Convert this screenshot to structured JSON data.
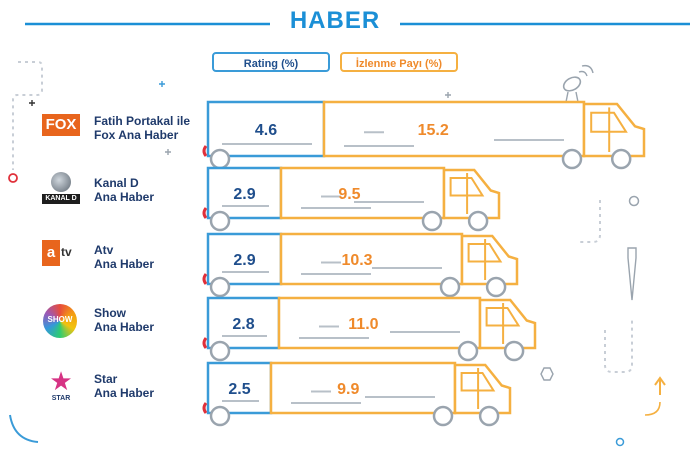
{
  "title": "HABER",
  "legend": {
    "rating_label": "Rating (%)",
    "izlenme_label": "İzlenme Payı (%)"
  },
  "colors": {
    "rating": "#3a9bd8",
    "rating_value": "#1f4e8c",
    "izlenme": "#f5b041",
    "izlenme_value": "#ef8a2b",
    "title": "#1b8fd6",
    "label": "#1f3a6b"
  },
  "logos": {
    "fox": "FOX",
    "kanald": "KANAL D",
    "atv": "atv",
    "show": "SHOW",
    "star": "STAR"
  },
  "chart_data": {
    "type": "bar",
    "title": "HABER",
    "categories": [
      "Fatih Portakal ile Fox Ana Haber",
      "Kanal D Ana Haber",
      "Atv Ana Haber",
      "Show Ana Haber",
      "Star Ana Haber"
    ],
    "category_lines": [
      [
        "Fatih Portakal ile",
        "Fox Ana Haber"
      ],
      [
        "Kanal D",
        "Ana Haber"
      ],
      [
        "Atv",
        "Ana Haber"
      ],
      [
        "Show",
        "Ana Haber"
      ],
      [
        "Star",
        "Ana Haber"
      ]
    ],
    "series": [
      {
        "name": "Rating (%)",
        "values": [
          4.6,
          2.9,
          2.9,
          2.8,
          2.5
        ]
      },
      {
        "name": "İzlenme Payı (%)",
        "values": [
          15.2,
          9.5,
          10.3,
          11.0,
          9.9
        ]
      }
    ],
    "value_labels": {
      "rating": [
        "4.6",
        "2.9",
        "2.9",
        "2.8",
        "2.5"
      ],
      "izlenme": [
        "15.2",
        "9.5",
        "10.3",
        "11.0",
        "9.9"
      ]
    },
    "legend": "top-center"
  }
}
